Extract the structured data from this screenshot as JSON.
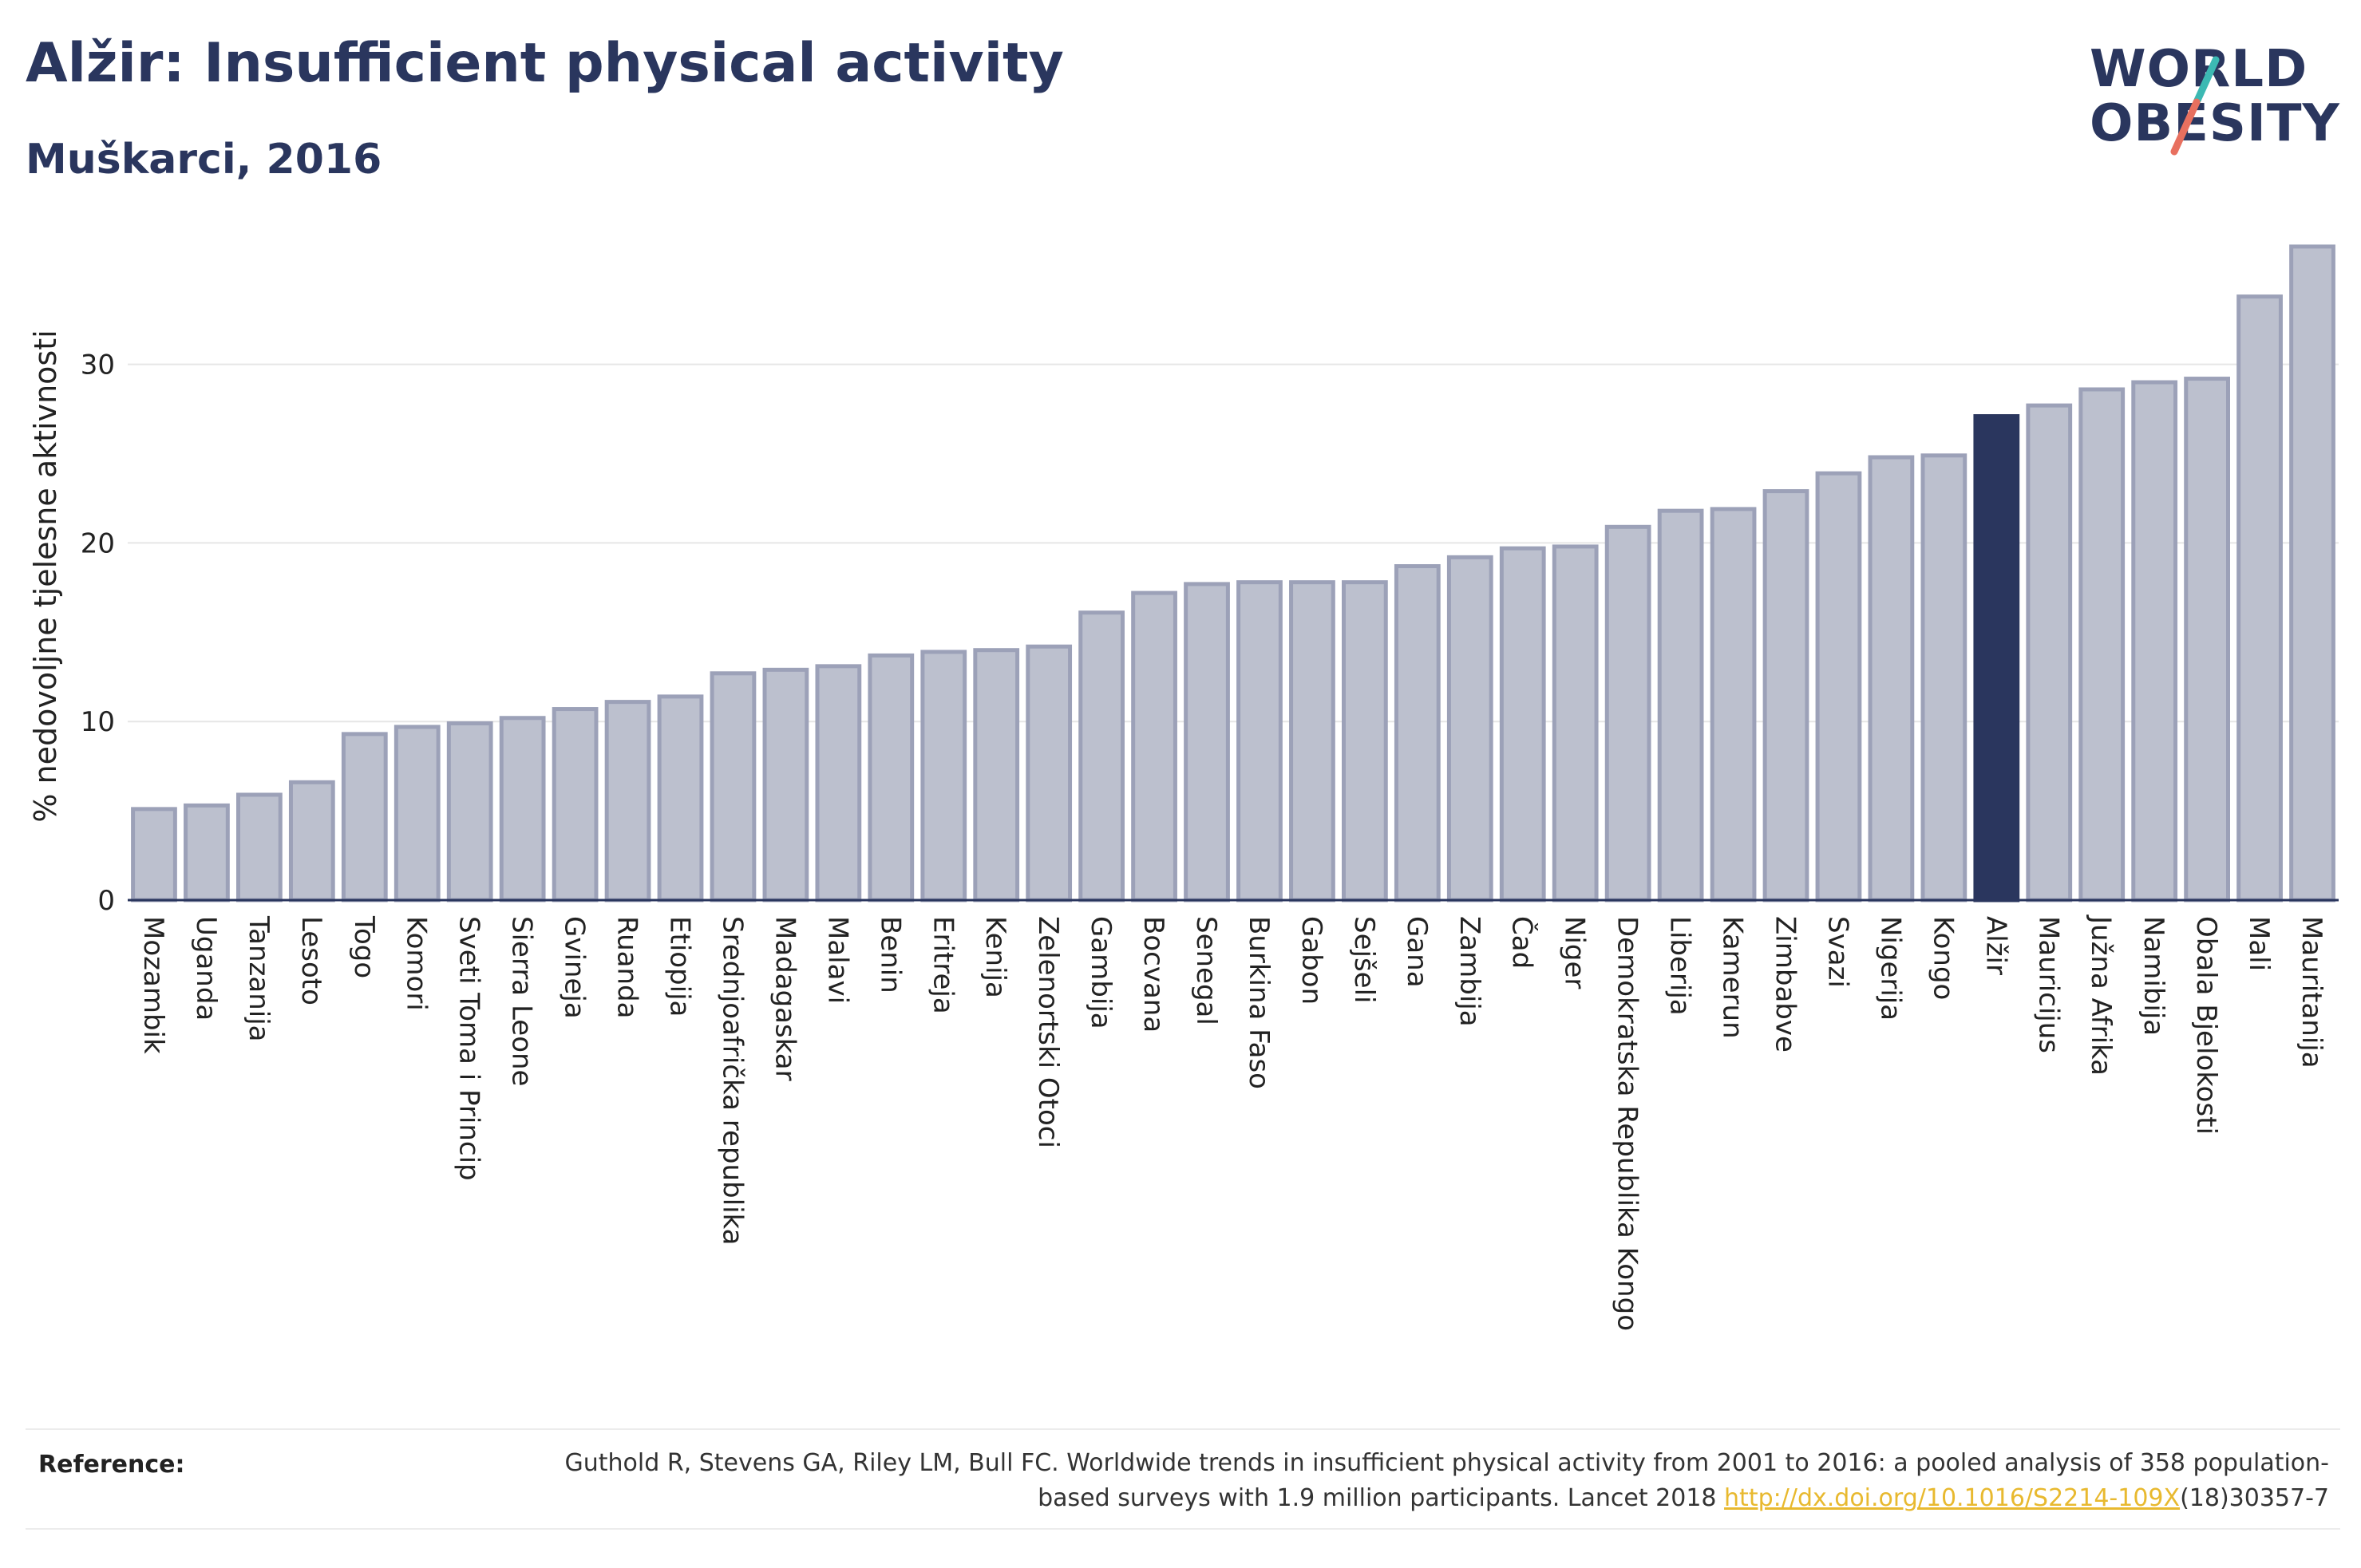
{
  "header": {
    "title": "Alžir: Insufficient physical activity",
    "subtitle": "Muškarci, 2016"
  },
  "logo": {
    "line1": "WORLD",
    "line2": "OBESITY",
    "slash_colors": [
      "#3cb9b3",
      "#e8705f"
    ]
  },
  "colors": {
    "bar": "#bcc0ce",
    "bar_border": "#9ca1b8",
    "highlight": "#2a365e",
    "grid": "#e6e6e6",
    "axis": "#2a365e"
  },
  "chart_data": {
    "type": "bar",
    "title": "Alžir: Insufficient physical activity",
    "subtitle": "Muškarci, 2016",
    "ylabel": "% nedovoljne tjelesne aktivnosti",
    "xlabel": "",
    "ylim": [
      0,
      37
    ],
    "yticks": [
      0,
      10,
      20,
      30
    ],
    "grid": true,
    "highlight": "Alžir",
    "categories": [
      "Mozambik",
      "Uganda",
      "Tanzanija",
      "Lesoto",
      "Togo",
      "Komori",
      "Sveti Toma i Princip",
      "Sierra Leone",
      "Gvineja",
      "Ruanda",
      "Etiopija",
      "Srednjoafrička republika",
      "Madagaskar",
      "Malavi",
      "Benin",
      "Eritreja",
      "Kenija",
      "Zelenortski Otoci",
      "Gambija",
      "Bocvana",
      "Senegal",
      "Burkina Faso",
      "Gabon",
      "Sejšeli",
      "Gana",
      "Zambija",
      "Čad",
      "Niger",
      "Demokratska Republika Kongo",
      "Liberija",
      "Kamerun",
      "Zimbabve",
      "Svazi",
      "Nigerija",
      "Kongo",
      "Alžir",
      "Mauricijus",
      "Južna Afrika",
      "Namibija",
      "Obala Bjelokosti",
      "Mali",
      "Mauritanija"
    ],
    "values": [
      5.1,
      5.3,
      5.9,
      6.6,
      9.3,
      9.7,
      9.9,
      10.2,
      10.7,
      11.1,
      11.4,
      12.7,
      12.9,
      13.1,
      13.7,
      13.9,
      14.0,
      14.2,
      16.1,
      17.2,
      17.7,
      17.8,
      17.8,
      17.8,
      18.7,
      19.2,
      19.7,
      19.8,
      20.9,
      21.8,
      21.9,
      22.9,
      23.9,
      24.8,
      24.9,
      27.1,
      27.7,
      28.6,
      29.0,
      29.2,
      33.8,
      36.6
    ]
  },
  "reference": {
    "label": "Reference:",
    "text_before": "Guthold R, Stevens GA, Riley LM, Bull FC. Worldwide trends in insufficient physical activity from 2001 to 2016: a pooled analysis of 358 population-based surveys with 1.9 million participants. Lancet 2018 ",
    "link": "http://dx.doi.org/10.1016/S2214-109X",
    "text_after": "(18)30357-7"
  }
}
